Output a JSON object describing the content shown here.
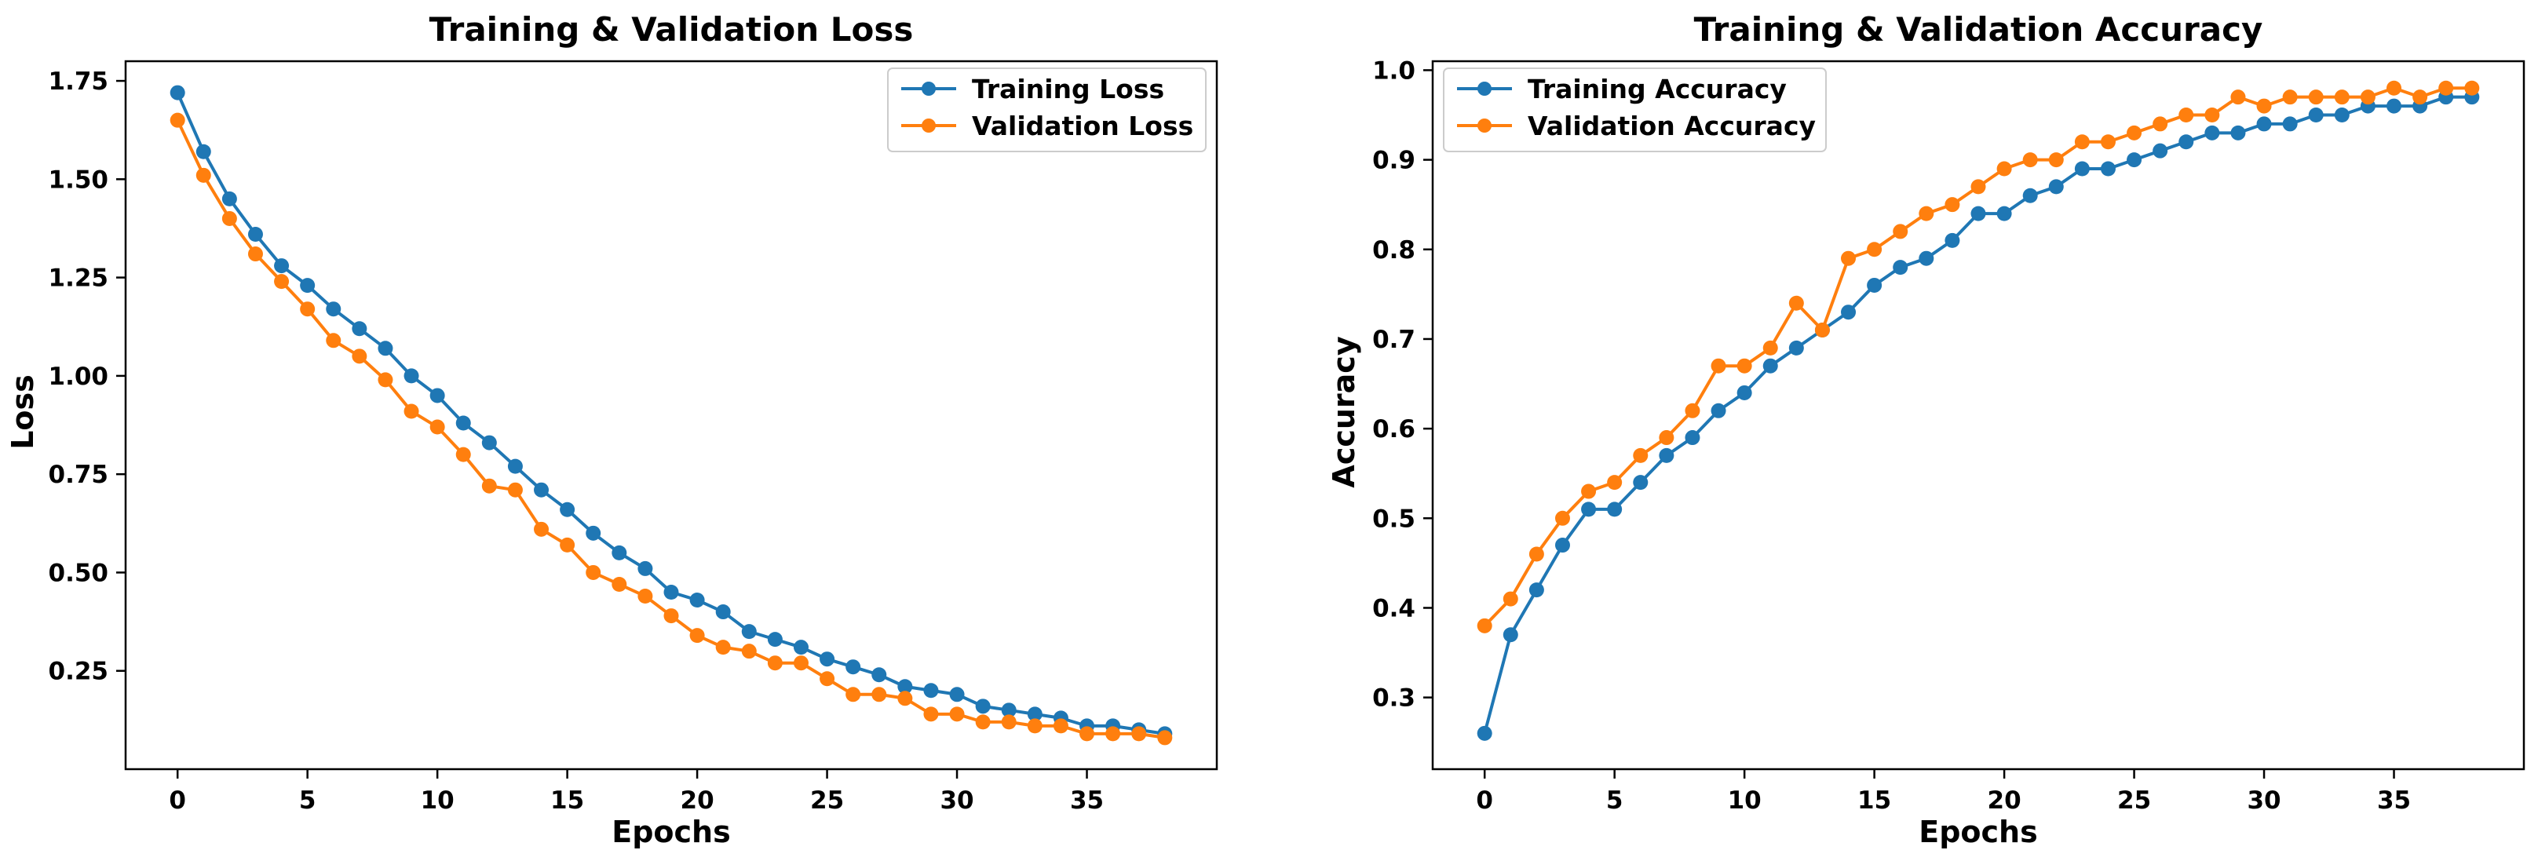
{
  "chart_data": [
    {
      "type": "line",
      "title": "Training & Validation Loss",
      "xlabel": "Epochs",
      "ylabel": "Loss",
      "xlim": [
        -2,
        40
      ],
      "ylim": [
        0.0,
        1.8
      ],
      "xticks": [
        0,
        5,
        10,
        15,
        20,
        25,
        30,
        35
      ],
      "yticks": [
        0.25,
        0.5,
        0.75,
        1.0,
        1.25,
        1.5,
        1.75
      ],
      "ytick_labels": [
        "0.25",
        "0.50",
        "0.75",
        "1.00",
        "1.25",
        "1.50",
        "1.75"
      ],
      "legend_position": "top-right",
      "x": [
        0,
        1,
        2,
        3,
        4,
        5,
        6,
        7,
        8,
        9,
        10,
        11,
        12,
        13,
        14,
        15,
        16,
        17,
        18,
        19,
        20,
        21,
        22,
        23,
        24,
        25,
        26,
        27,
        28,
        29,
        30,
        31,
        32,
        33,
        34,
        35,
        36,
        37,
        38
      ],
      "series": [
        {
          "name": "Training Loss",
          "color": "#1f77b4",
          "values": [
            1.72,
            1.57,
            1.45,
            1.36,
            1.28,
            1.23,
            1.17,
            1.12,
            1.07,
            1.0,
            0.95,
            0.88,
            0.83,
            0.77,
            0.71,
            0.66,
            0.6,
            0.55,
            0.51,
            0.45,
            0.43,
            0.4,
            0.35,
            0.33,
            0.31,
            0.28,
            0.26,
            0.24,
            0.21,
            0.2,
            0.19,
            0.16,
            0.15,
            0.14,
            0.13,
            0.11,
            0.11,
            0.1,
            0.09
          ]
        },
        {
          "name": "Validation Loss",
          "color": "#ff7f0e",
          "values": [
            1.65,
            1.51,
            1.4,
            1.31,
            1.24,
            1.17,
            1.09,
            1.05,
            0.99,
            0.91,
            0.87,
            0.8,
            0.72,
            0.71,
            0.61,
            0.57,
            0.5,
            0.47,
            0.44,
            0.39,
            0.34,
            0.31,
            0.3,
            0.27,
            0.27,
            0.23,
            0.19,
            0.19,
            0.18,
            0.14,
            0.14,
            0.12,
            0.12,
            0.11,
            0.11,
            0.09,
            0.09,
            0.09,
            0.08
          ]
        }
      ]
    },
    {
      "type": "line",
      "title": "Training & Validation Accuracy",
      "xlabel": "Epochs",
      "ylabel": "Accuracy",
      "xlim": [
        -2,
        40
      ],
      "ylim": [
        0.22,
        1.01
      ],
      "xticks": [
        0,
        5,
        10,
        15,
        20,
        25,
        30,
        35
      ],
      "yticks": [
        0.3,
        0.4,
        0.5,
        0.6,
        0.7,
        0.8,
        0.9,
        1.0
      ],
      "ytick_labels": [
        "0.3",
        "0.4",
        "0.5",
        "0.6",
        "0.7",
        "0.8",
        "0.9",
        "1.0"
      ],
      "legend_position": "top-left",
      "x": [
        0,
        1,
        2,
        3,
        4,
        5,
        6,
        7,
        8,
        9,
        10,
        11,
        12,
        13,
        14,
        15,
        16,
        17,
        18,
        19,
        20,
        21,
        22,
        23,
        24,
        25,
        26,
        27,
        28,
        29,
        30,
        31,
        32,
        33,
        34,
        35,
        36,
        37,
        38
      ],
      "series": [
        {
          "name": "Training Accuracy",
          "color": "#1f77b4",
          "values": [
            0.26,
            0.37,
            0.42,
            0.47,
            0.51,
            0.51,
            0.54,
            0.57,
            0.59,
            0.62,
            0.64,
            0.67,
            0.69,
            0.71,
            0.73,
            0.76,
            0.78,
            0.79,
            0.81,
            0.84,
            0.84,
            0.86,
            0.87,
            0.89,
            0.89,
            0.9,
            0.91,
            0.92,
            0.93,
            0.93,
            0.94,
            0.94,
            0.95,
            0.95,
            0.96,
            0.96,
            0.96,
            0.97,
            0.97
          ]
        },
        {
          "name": "Validation Accuracy",
          "color": "#ff7f0e",
          "values": [
            0.38,
            0.41,
            0.46,
            0.5,
            0.53,
            0.54,
            0.57,
            0.59,
            0.62,
            0.67,
            0.67,
            0.69,
            0.74,
            0.71,
            0.79,
            0.8,
            0.82,
            0.84,
            0.85,
            0.87,
            0.89,
            0.9,
            0.9,
            0.92,
            0.92,
            0.93,
            0.94,
            0.95,
            0.95,
            0.97,
            0.96,
            0.97,
            0.97,
            0.97,
            0.97,
            0.98,
            0.97,
            0.98,
            0.98
          ]
        }
      ]
    }
  ]
}
